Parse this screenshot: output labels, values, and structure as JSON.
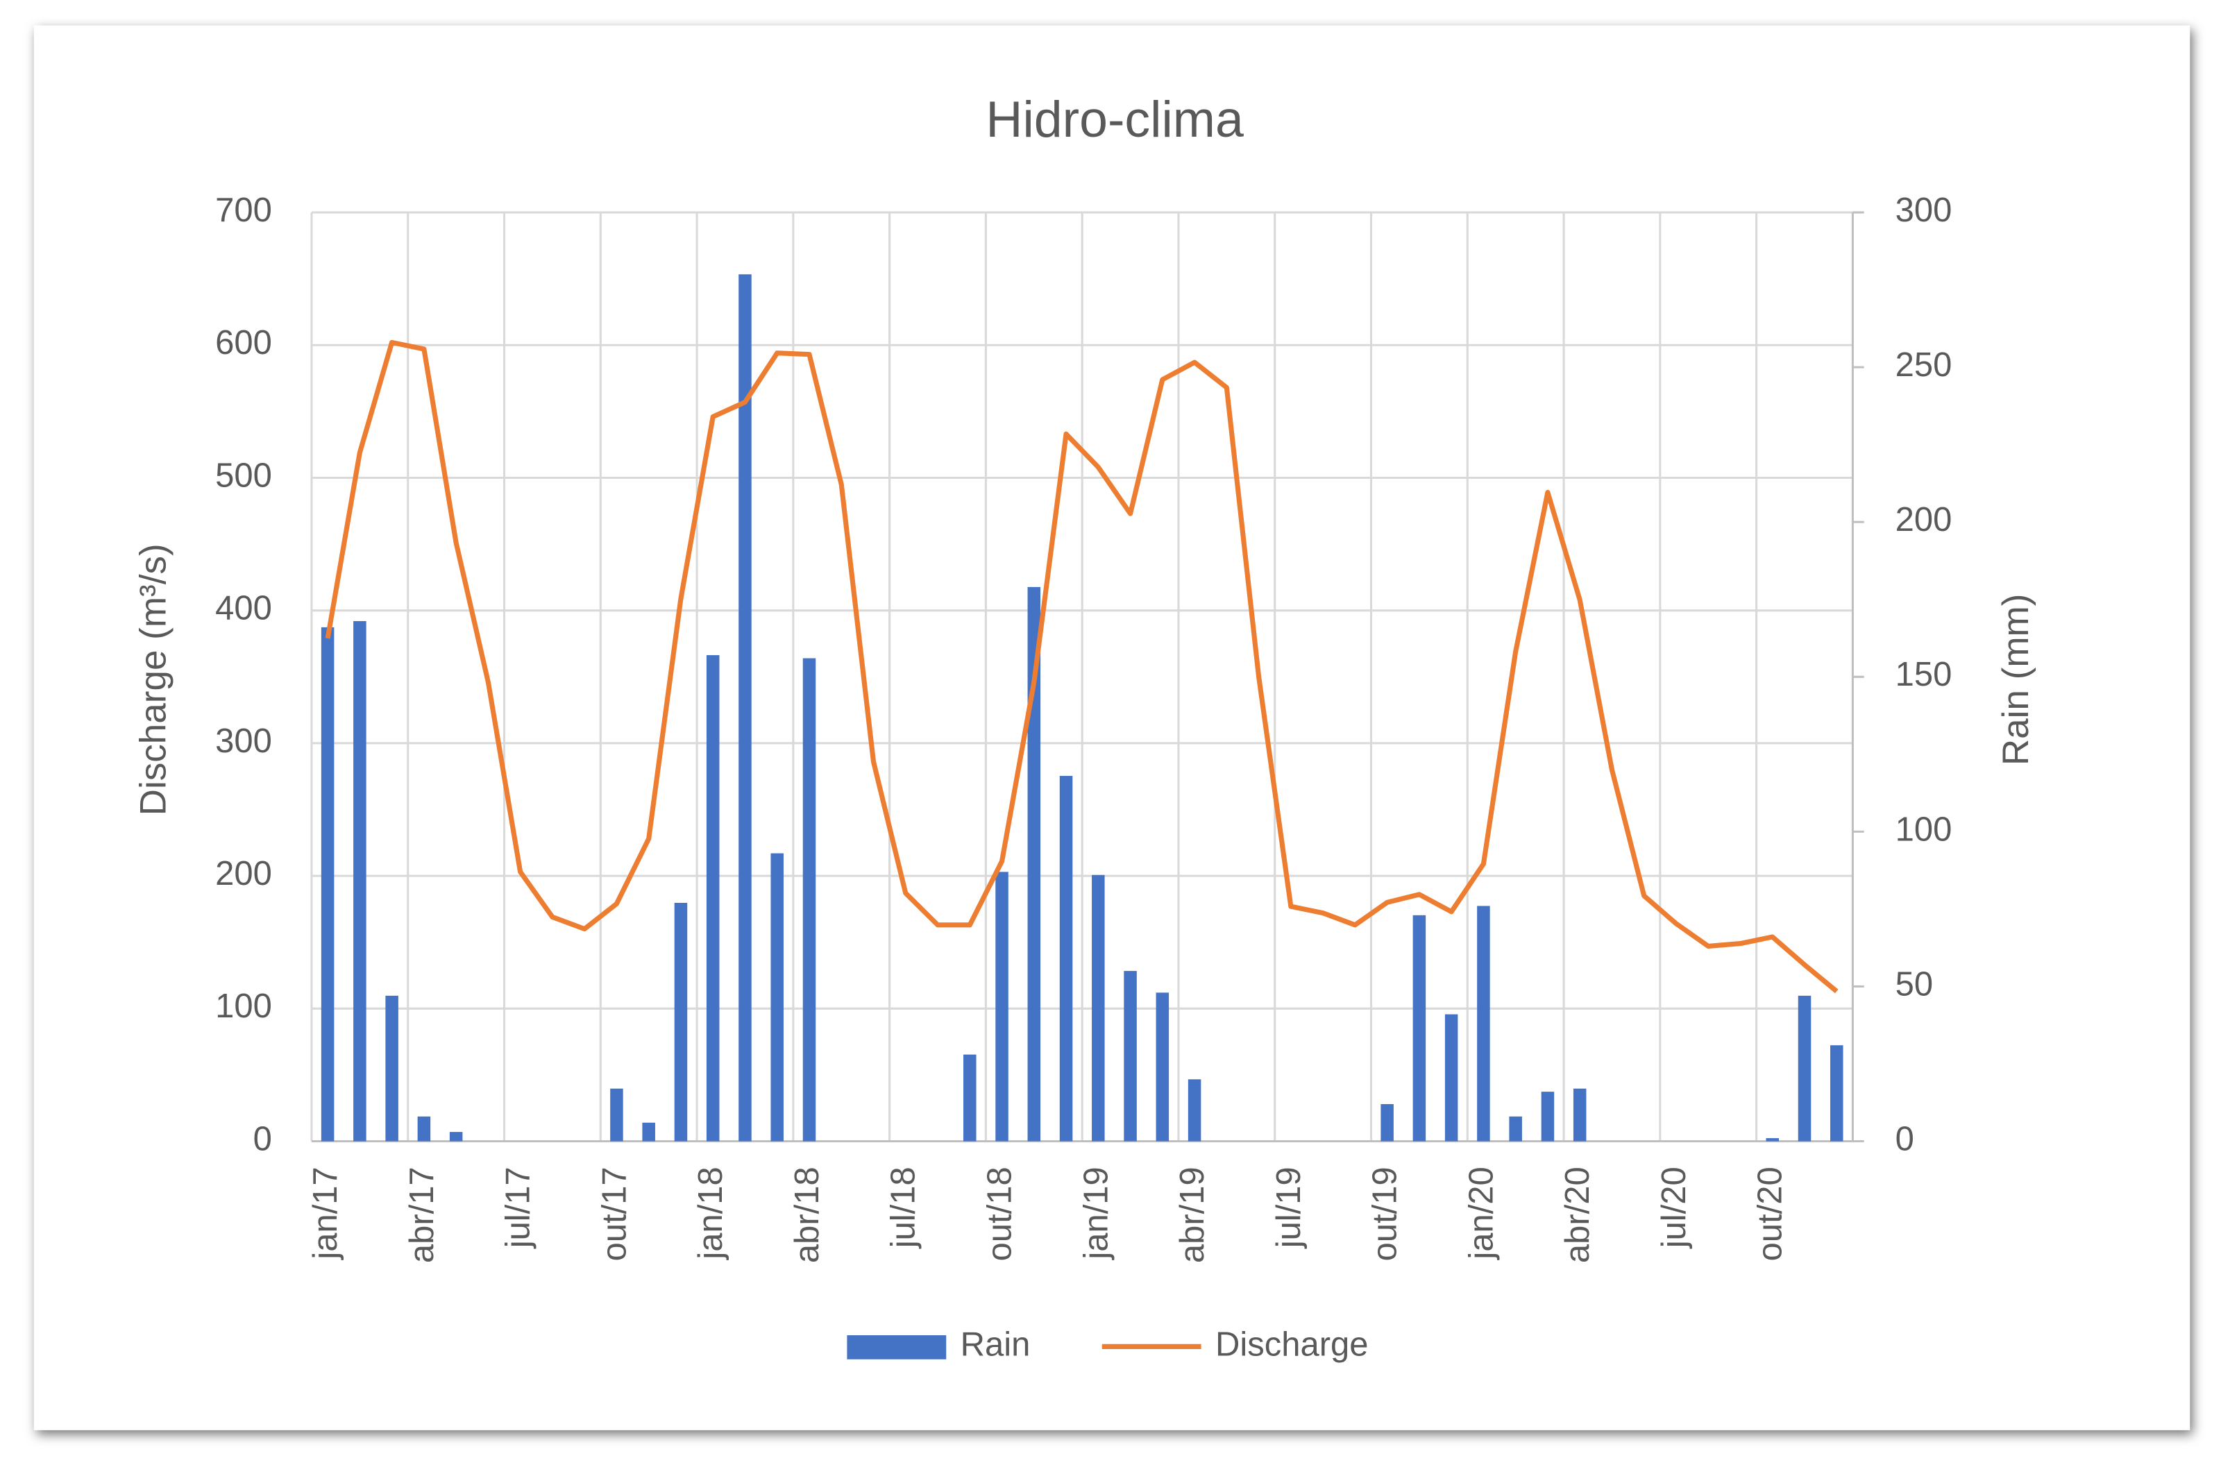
{
  "chart_data": {
    "type": "bar",
    "title": "Hidro-clima",
    "y_label": "Discharge (m³/s)",
    "y2_label": "Rain (mm)",
    "categories": [
      "jan/17",
      null,
      null,
      "abr/17",
      null,
      null,
      "jul/17",
      null,
      null,
      "out/17",
      null,
      null,
      "jan/18",
      null,
      null,
      "abr/18",
      null,
      null,
      "jul/18",
      null,
      null,
      "out/18",
      null,
      null,
      "jan/19",
      null,
      null,
      "abr/19",
      null,
      null,
      "jul/19",
      null,
      null,
      "out/19",
      null,
      null,
      "jan/20",
      null,
      null,
      "abr/20",
      null,
      null,
      "jul/20",
      null,
      null,
      "out/20",
      null,
      null
    ],
    "series": [
      {
        "name": "Rain",
        "type": "bar",
        "axis": "y2",
        "color": "#4472c4",
        "values": [
          166,
          168,
          47,
          8,
          3,
          0,
          0,
          0,
          0,
          17,
          6,
          77,
          157,
          280,
          93,
          156,
          0,
          0,
          0,
          0,
          28,
          87,
          179,
          118,
          86,
          55,
          48,
          20,
          0,
          0,
          0,
          0,
          0,
          12,
          73,
          41,
          76,
          8,
          16,
          17,
          0,
          0,
          0,
          0,
          0,
          1,
          47,
          31
        ]
      },
      {
        "name": "Discharge",
        "type": "line",
        "color": "#ed7d31",
        "values": [
          379,
          519,
          602,
          597,
          451,
          346,
          203,
          169,
          160,
          179,
          228,
          409,
          546,
          557,
          594,
          593,
          495,
          286,
          187,
          163,
          163,
          211,
          346,
          533,
          508,
          473,
          574,
          587,
          568,
          350,
          177,
          172,
          163,
          180,
          186,
          173,
          209,
          369,
          489,
          408,
          280,
          185,
          164,
          147,
          149,
          154,
          133,
          113
        ]
      }
    ],
    "ylim": [
      0,
      700
    ],
    "yticks": [
      0,
      100,
      200,
      300,
      400,
      500,
      600,
      700
    ],
    "y2lim": [
      0,
      300
    ],
    "y2ticks": [
      0,
      50,
      100,
      150,
      200,
      250,
      300
    ],
    "grid": true,
    "legend": "bottom"
  }
}
